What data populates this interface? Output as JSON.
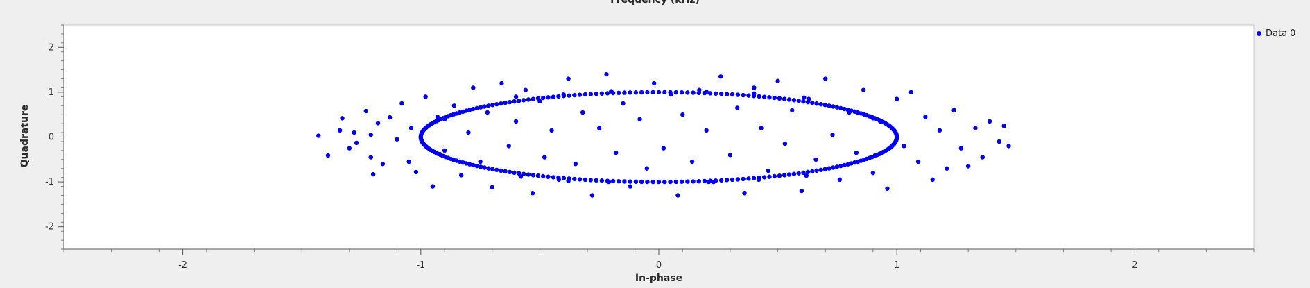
{
  "header": {
    "title": "Frequency (kHz)"
  },
  "chart_data": {
    "type": "scatter",
    "title": "",
    "xlabel": "In-phase",
    "ylabel": "Quadrature",
    "xlim": [
      -2.5,
      2.5
    ],
    "ylim": [
      -2.5,
      2.5
    ],
    "xticks": [
      -2,
      -1,
      0,
      1,
      2
    ],
    "yticks": [
      -2,
      -1,
      0,
      1,
      2
    ],
    "grid": false,
    "legend_position": "top-right",
    "marker_color": "#0000ee",
    "series": [
      {
        "name": "Data 0",
        "ring": {
          "rx": 1.0,
          "ry": 1.0
        },
        "points": [
          [
            -1.43,
            0.03
          ],
          [
            -1.39,
            -0.41
          ],
          [
            -1.33,
            0.42
          ],
          [
            -1.34,
            0.15
          ],
          [
            -1.3,
            -0.25
          ],
          [
            -1.28,
            0.1
          ],
          [
            -1.27,
            -0.13
          ],
          [
            -1.23,
            0.58
          ],
          [
            -1.21,
            -0.45
          ],
          [
            -1.21,
            0.05
          ],
          [
            -1.2,
            -0.83
          ],
          [
            -1.18,
            0.31
          ],
          [
            -1.16,
            -0.6
          ],
          [
            -1.13,
            0.44
          ],
          [
            -1.1,
            -0.05
          ],
          [
            -1.08,
            0.75
          ],
          [
            -1.05,
            -0.55
          ],
          [
            -1.04,
            0.2
          ],
          [
            -1.02,
            -0.78
          ],
          [
            -0.98,
            0.9
          ],
          [
            -0.95,
            -1.1
          ],
          [
            -0.93,
            0.45
          ],
          [
            -0.9,
            -0.3
          ],
          [
            -0.86,
            0.7
          ],
          [
            -0.83,
            -0.85
          ],
          [
            -0.8,
            0.1
          ],
          [
            -0.78,
            1.1
          ],
          [
            -0.75,
            -0.55
          ],
          [
            -0.72,
            0.55
          ],
          [
            -0.7,
            -1.12
          ],
          [
            -0.66,
            1.2
          ],
          [
            -0.63,
            -0.2
          ],
          [
            -0.6,
            0.35
          ],
          [
            -0.56,
            1.05
          ],
          [
            -0.53,
            -1.25
          ],
          [
            -0.5,
            0.8
          ],
          [
            -0.48,
            -0.45
          ],
          [
            -0.45,
            0.15
          ],
          [
            -0.42,
            -0.95
          ],
          [
            -0.38,
            1.3
          ],
          [
            -0.35,
            -0.6
          ],
          [
            -0.32,
            0.55
          ],
          [
            -0.28,
            -1.3
          ],
          [
            -0.25,
            0.2
          ],
          [
            -0.22,
            1.4
          ],
          [
            -0.18,
            -0.35
          ],
          [
            -0.15,
            0.75
          ],
          [
            -0.12,
            -1.1
          ],
          [
            -0.08,
            0.4
          ],
          [
            -0.05,
            -0.7
          ],
          [
            -0.02,
            1.2
          ],
          [
            0.02,
            -0.25
          ],
          [
            0.05,
            0.95
          ],
          [
            0.08,
            -1.3
          ],
          [
            0.1,
            0.5
          ],
          [
            0.14,
            -0.55
          ],
          [
            0.17,
            1.05
          ],
          [
            0.2,
            0.15
          ],
          [
            0.23,
            -1.0
          ],
          [
            0.26,
            1.35
          ],
          [
            0.3,
            -0.4
          ],
          [
            0.33,
            0.65
          ],
          [
            0.36,
            -1.25
          ],
          [
            0.4,
            1.1
          ],
          [
            0.43,
            0.2
          ],
          [
            0.46,
            -0.75
          ],
          [
            0.5,
            1.25
          ],
          [
            0.53,
            -0.15
          ],
          [
            0.56,
            0.6
          ],
          [
            0.6,
            -1.2
          ],
          [
            0.63,
            0.85
          ],
          [
            0.66,
            -0.5
          ],
          [
            0.7,
            1.3
          ],
          [
            0.73,
            0.05
          ],
          [
            0.76,
            -0.95
          ],
          [
            0.8,
            0.55
          ],
          [
            0.83,
            -0.35
          ],
          [
            0.86,
            1.05
          ],
          [
            0.9,
            -0.8
          ],
          [
            0.93,
            0.35
          ],
          [
            0.96,
            -1.15
          ],
          [
            1.0,
            0.85
          ],
          [
            1.03,
            -0.2
          ],
          [
            1.06,
            1.0
          ],
          [
            1.09,
            -0.55
          ],
          [
            1.12,
            0.45
          ],
          [
            1.15,
            -0.95
          ],
          [
            1.18,
            0.15
          ],
          [
            1.21,
            -0.7
          ],
          [
            1.24,
            0.6
          ],
          [
            1.27,
            -0.25
          ],
          [
            1.3,
            -0.65
          ],
          [
            1.33,
            0.2
          ],
          [
            1.36,
            -0.45
          ],
          [
            1.39,
            0.35
          ],
          [
            1.43,
            -0.1
          ],
          [
            1.45,
            0.25
          ],
          [
            1.47,
            -0.2
          ],
          [
            -0.6,
            0.9
          ],
          [
            -0.58,
            -0.88
          ],
          [
            -0.4,
            0.95
          ],
          [
            -0.38,
            -0.98
          ],
          [
            -0.2,
            1.02
          ],
          [
            -0.21,
            -1.0
          ],
          [
            0.2,
            1.01
          ],
          [
            0.21,
            -1.0
          ],
          [
            0.4,
            0.97
          ],
          [
            0.42,
            -0.95
          ],
          [
            0.61,
            0.88
          ],
          [
            0.62,
            -0.86
          ],
          [
            -0.9,
            0.4
          ],
          [
            -0.92,
            -0.38
          ],
          [
            0.9,
            0.42
          ],
          [
            0.91,
            -0.4
          ]
        ]
      }
    ]
  }
}
